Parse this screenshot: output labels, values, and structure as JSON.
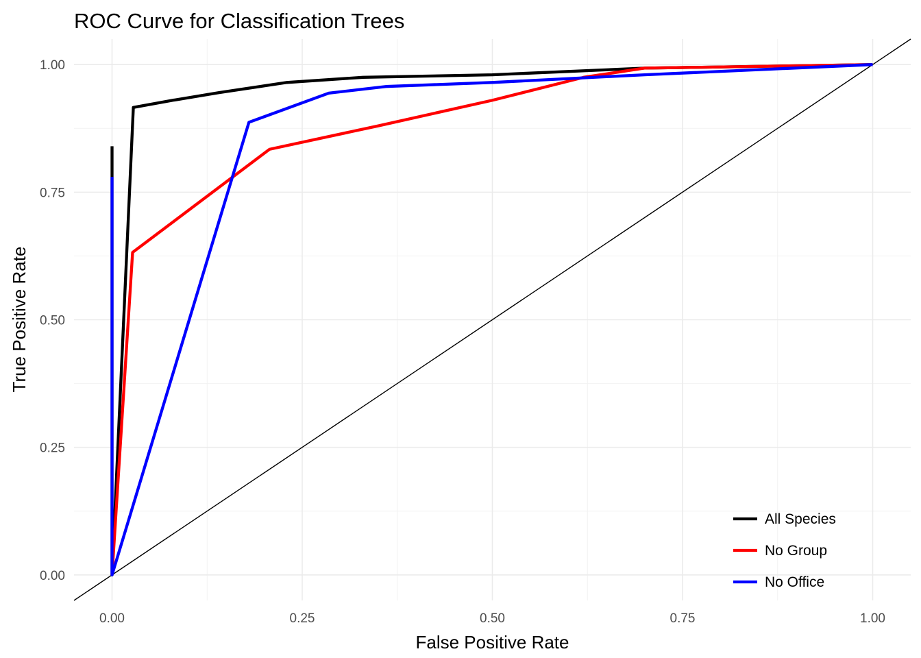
{
  "chart_data": {
    "type": "line",
    "title": "ROC Curve for Classification Trees",
    "xlabel": "False Positive Rate",
    "ylabel": "True Positive Rate",
    "xlim": [
      -0.05,
      1.05
    ],
    "ylim": [
      -0.05,
      1.05
    ],
    "x_ticks": [
      0,
      0.25,
      0.5,
      0.75,
      1.0
    ],
    "x_tick_labels": [
      "0.00",
      "0.25",
      "0.50",
      "0.75",
      "1.00"
    ],
    "y_ticks": [
      0,
      0.25,
      0.5,
      0.75,
      1.0
    ],
    "y_tick_labels": [
      "0.00",
      "0.25",
      "0.50",
      "0.75",
      "1.00"
    ],
    "grid": true,
    "legend_position": "bottom-right",
    "reference_line": {
      "x": [
        -0.05,
        1.05
      ],
      "y": [
        -0.05,
        1.05
      ],
      "color": "#000000"
    },
    "series": [
      {
        "name": "All Species",
        "color": "#000000",
        "points": [
          [
            0.0,
            0.84
          ],
          [
            0.0,
            0.0
          ],
          [
            0.028,
            0.916
          ],
          [
            0.08,
            0.93
          ],
          [
            0.14,
            0.945
          ],
          [
            0.23,
            0.965
          ],
          [
            0.33,
            0.975
          ],
          [
            0.5,
            0.98
          ],
          [
            0.7,
            0.993
          ],
          [
            1.0,
            1.0
          ]
        ]
      },
      {
        "name": "No Group",
        "color": "#ff0000",
        "points": [
          [
            0.0,
            0.0
          ],
          [
            0.027,
            0.632
          ],
          [
            0.207,
            0.834
          ],
          [
            0.35,
            0.88
          ],
          [
            0.5,
            0.93
          ],
          [
            0.62,
            0.975
          ],
          [
            0.7,
            0.993
          ],
          [
            1.0,
            1.0
          ]
        ]
      },
      {
        "name": "No Office",
        "color": "#0000ff",
        "points": [
          [
            0.0,
            0.78
          ],
          [
            0.0,
            0.0
          ],
          [
            0.18,
            0.887
          ],
          [
            0.285,
            0.944
          ],
          [
            0.36,
            0.957
          ],
          [
            0.5,
            0.965
          ],
          [
            0.7,
            0.98
          ],
          [
            1.0,
            1.0
          ]
        ]
      }
    ]
  }
}
